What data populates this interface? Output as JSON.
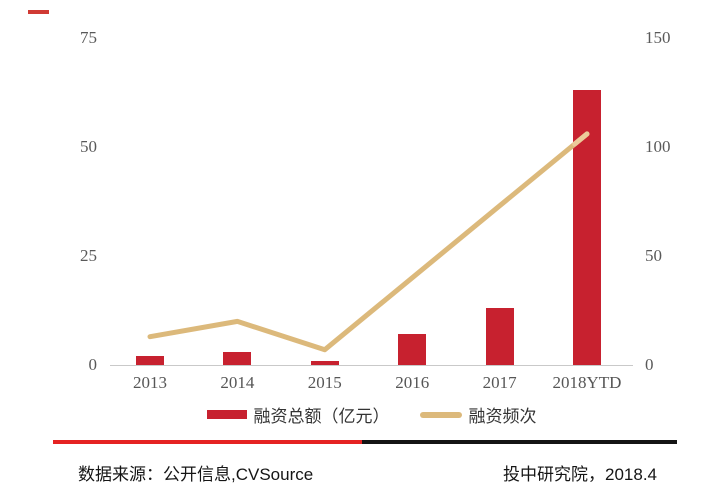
{
  "chart_data": {
    "type": "bar+line combo",
    "title": "",
    "categories": [
      "2013",
      "2014",
      "2015",
      "2016",
      "2017",
      "2018YTD"
    ],
    "series": [
      {
        "name": "融资总额（亿元）",
        "type": "bar",
        "axis": "left",
        "color": "#c7212f",
        "values": [
          2,
          3,
          1,
          7,
          13,
          63
        ]
      },
      {
        "name": "融资频次",
        "type": "line",
        "axis": "right",
        "color": "#dcb97b",
        "tip_color": "#ecca9a",
        "values": [
          13,
          20,
          7,
          40,
          73,
          106
        ]
      }
    ],
    "axes": {
      "left": {
        "ticks": [
          75,
          50,
          25,
          0
        ],
        "range": [
          0,
          75
        ],
        "label": ""
      },
      "right": {
        "ticks": [
          150,
          100,
          50,
          0
        ],
        "range": [
          0,
          150
        ],
        "label": ""
      }
    },
    "grid": false,
    "legend_position": "bottom"
  },
  "legend": {
    "items": [
      {
        "label": "融资总额（亿元）",
        "swatch": "bar"
      },
      {
        "label": "融资频次",
        "swatch": "line"
      }
    ]
  },
  "footer": {
    "source_text": "数据来源：公开信息,CVSource",
    "org_text": "投中研究院，2018.4",
    "divider_red": "#e52222",
    "divider_black": "#141414"
  },
  "decor": {
    "top_left_dash_color": "#d03a34"
  },
  "colors": {
    "bar": "#c7212f",
    "line": "#dcb97b",
    "line_tip": "#ecca9a",
    "axis_text": "#595959",
    "baseline": "#c9c9c9",
    "background": "#ffffff"
  }
}
